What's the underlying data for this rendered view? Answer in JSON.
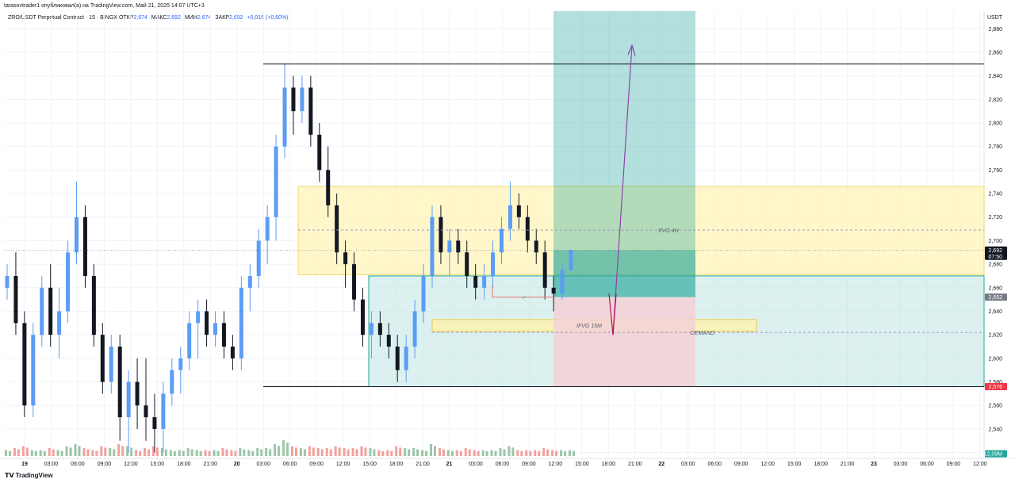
{
  "header": {
    "publisher_line": "tarasovtrader1 опубликовал(а) на TradingView.com, Май 21, 2025 14:07 UTC+3",
    "symbol_line": "ZRO/USDT Perpetual Contract · 15 · BINGX",
    "ohlc": [
      {
        "label": "ОТКР",
        "value": "2,674"
      },
      {
        "label": "МАКС",
        "value": "2,692"
      },
      {
        "label": "МИН",
        "value": "2,674"
      },
      {
        "label": "ЗАКР",
        "value": "2,692"
      }
    ],
    "change": "+0,016 (+0,60%)"
  },
  "footer": {
    "brand": "TradingView",
    "logo_icon": "tradingview-logo-icon"
  },
  "colors": {
    "up": "#5b9cf6",
    "down": "#131722",
    "vol_up": "#9dc5a8",
    "vol_down": "#f2a29c",
    "fvg_zone": "#fff3b3",
    "demand_zone": "#fdf3b0",
    "profit_zone": "#b2dfdb",
    "loss_zone": "#f3d1d6",
    "arrow": "#8e44ad"
  },
  "chart_data": {
    "type": "candlestick",
    "symbol": "ZRO/USDT Perpetual Contract",
    "timeframe": "15",
    "currency_label": "USDT",
    "ylim": [
      2.515,
      2.895
    ],
    "y_ticks": [
      "2,880",
      "2,860",
      "2,840",
      "2,820",
      "2,800",
      "2,780",
      "2,760",
      "2,740",
      "2,720",
      "2,700",
      "2,680",
      "2,660",
      "2,640",
      "2,620",
      "2,600",
      "2,580",
      "2,560",
      "2,540",
      "2,520"
    ],
    "x_ticks": [
      "19",
      "03:00",
      "06:00",
      "09:00",
      "12:00",
      "15:00",
      "18:00",
      "21:00",
      "20",
      "03:00",
      "06:00",
      "09:00",
      "12:00",
      "15:00",
      "18:00",
      "21:00",
      "21",
      "03:00",
      "06:00",
      "09:00",
      "12:00",
      "15:00",
      "18:00",
      "21:00",
      "22",
      "03:00",
      "06:00",
      "09:00",
      "12:00",
      "15:00",
      "18:00",
      "21:00",
      "23",
      "03:00",
      "06:00",
      "09:00",
      "12:00"
    ],
    "price_tags": [
      {
        "label": "2,692",
        "sub": "07:50",
        "value": 2.692,
        "color": "#131722"
      },
      {
        "label": "2,652",
        "value": 2.652,
        "color": "#787b86"
      },
      {
        "label": "2,576",
        "value": 2.576,
        "color": "#f23645"
      },
      {
        "label": "12,09M",
        "value": 2.519,
        "color": "#26a69a"
      }
    ],
    "levels": [
      {
        "name": "range-high",
        "value": 2.85
      },
      {
        "name": "range-low",
        "value": 2.576
      },
      {
        "name": "fvg-mid",
        "value": 2.709
      },
      {
        "name": "demand-mid",
        "value": 2.622
      },
      {
        "name": "current-price",
        "value": 2.692
      }
    ],
    "zones": [
      {
        "name": "FVG 4H",
        "from": 2.671,
        "to": 2.746
      },
      {
        "name": "IFVG 15M",
        "from": 2.623,
        "to": 2.633
      },
      {
        "name": "DEMAND",
        "from": 2.576,
        "to": 2.67
      }
    ],
    "position": {
      "type": "long",
      "entry": 2.652,
      "stop": 2.576,
      "target": 2.895,
      "current": 2.692
    },
    "annotations": [
      "FVG 4H",
      "IFVG 15M",
      "DEMAND"
    ],
    "candles_approx": [
      [
        2.66,
        2.68,
        2.65,
        2.67
      ],
      [
        2.67,
        2.69,
        2.62,
        2.63
      ],
      [
        2.63,
        2.64,
        2.55,
        2.56
      ],
      [
        2.56,
        2.63,
        2.55,
        2.62
      ],
      [
        2.62,
        2.67,
        2.61,
        2.66
      ],
      [
        2.66,
        2.68,
        2.61,
        2.62
      ],
      [
        2.62,
        2.66,
        2.6,
        2.64
      ],
      [
        2.64,
        2.7,
        2.63,
        2.69
      ],
      [
        2.69,
        2.75,
        2.68,
        2.72
      ],
      [
        2.72,
        2.73,
        2.66,
        2.67
      ],
      [
        2.67,
        2.68,
        2.61,
        2.62
      ],
      [
        2.62,
        2.63,
        2.57,
        2.58
      ],
      [
        2.58,
        2.62,
        2.57,
        2.61
      ],
      [
        2.61,
        2.62,
        2.53,
        2.55
      ],
      [
        2.55,
        2.59,
        2.52,
        2.58
      ],
      [
        2.58,
        2.6,
        2.54,
        2.56
      ],
      [
        2.56,
        2.6,
        2.53,
        2.55
      ],
      [
        2.55,
        2.57,
        2.52,
        2.54
      ],
      [
        2.54,
        2.58,
        2.52,
        2.57
      ],
      [
        2.57,
        2.6,
        2.56,
        2.59
      ],
      [
        2.59,
        2.61,
        2.57,
        2.6
      ],
      [
        2.6,
        2.64,
        2.59,
        2.63
      ],
      [
        2.63,
        2.65,
        2.6,
        2.64
      ],
      [
        2.64,
        2.65,
        2.61,
        2.62
      ],
      [
        2.62,
        2.64,
        2.61,
        2.63
      ],
      [
        2.63,
        2.64,
        2.6,
        2.61
      ],
      [
        2.61,
        2.62,
        2.59,
        2.6
      ],
      [
        2.6,
        2.67,
        2.59,
        2.66
      ],
      [
        2.66,
        2.68,
        2.64,
        2.67
      ],
      [
        2.67,
        2.71,
        2.66,
        2.7
      ],
      [
        2.7,
        2.73,
        2.68,
        2.72
      ],
      [
        2.72,
        2.79,
        2.7,
        2.78
      ],
      [
        2.78,
        2.85,
        2.77,
        2.83
      ],
      [
        2.83,
        2.84,
        2.79,
        2.81
      ],
      [
        2.81,
        2.84,
        2.8,
        2.83
      ],
      [
        2.83,
        2.84,
        2.78,
        2.79
      ],
      [
        2.79,
        2.8,
        2.75,
        2.76
      ],
      [
        2.76,
        2.78,
        2.72,
        2.73
      ],
      [
        2.73,
        2.74,
        2.68,
        2.69
      ],
      [
        2.69,
        2.7,
        2.66,
        2.68
      ],
      [
        2.68,
        2.69,
        2.64,
        2.65
      ],
      [
        2.65,
        2.66,
        2.61,
        2.62
      ],
      [
        2.62,
        2.64,
        2.6,
        2.63
      ],
      [
        2.63,
        2.64,
        2.61,
        2.62
      ],
      [
        2.62,
        2.63,
        2.6,
        2.61
      ],
      [
        2.61,
        2.62,
        2.58,
        2.59
      ],
      [
        2.59,
        2.62,
        2.58,
        2.61
      ],
      [
        2.61,
        2.65,
        2.6,
        2.64
      ],
      [
        2.64,
        2.68,
        2.63,
        2.67
      ],
      [
        2.67,
        2.73,
        2.66,
        2.72
      ],
      [
        2.72,
        2.73,
        2.68,
        2.69
      ],
      [
        2.69,
        2.71,
        2.67,
        2.7
      ],
      [
        2.7,
        2.71,
        2.68,
        2.69
      ],
      [
        2.69,
        2.7,
        2.66,
        2.67
      ],
      [
        2.67,
        2.68,
        2.65,
        2.66
      ],
      [
        2.66,
        2.68,
        2.65,
        2.67
      ],
      [
        2.67,
        2.7,
        2.66,
        2.69
      ],
      [
        2.69,
        2.72,
        2.68,
        2.71
      ],
      [
        2.71,
        2.75,
        2.7,
        2.73
      ],
      [
        2.73,
        2.74,
        2.71,
        2.72
      ],
      [
        2.72,
        2.73,
        2.69,
        2.7
      ],
      [
        2.7,
        2.71,
        2.68,
        2.69
      ],
      [
        2.69,
        2.7,
        2.65,
        2.66
      ],
      [
        2.66,
        2.67,
        2.64,
        2.655
      ],
      [
        2.655,
        2.68,
        2.65,
        2.675
      ],
      [
        2.675,
        2.692,
        2.674,
        2.692
      ]
    ],
    "volume_approx": [
      0.3,
      0.4,
      0.5,
      0.3,
      0.3,
      0.4,
      0.3,
      0.5,
      0.6,
      0.4,
      0.3,
      0.5,
      0.4,
      0.6,
      0.5,
      0.3,
      0.4,
      0.5,
      0.4,
      0.3,
      0.3,
      0.4,
      0.3,
      0.3,
      0.3,
      0.4,
      0.3,
      0.4,
      0.3,
      0.4,
      0.4,
      0.6,
      0.8,
      0.5,
      0.4,
      0.5,
      0.4,
      0.4,
      0.5,
      0.4,
      0.4,
      0.5,
      0.4,
      0.3,
      0.3,
      0.5,
      0.4,
      0.4,
      0.3,
      0.6,
      0.4,
      0.3,
      0.3,
      0.4,
      0.3,
      0.3,
      0.3,
      0.4,
      0.5,
      0.3,
      0.3,
      0.3,
      0.4,
      0.3,
      0.3,
      0.3
    ]
  }
}
